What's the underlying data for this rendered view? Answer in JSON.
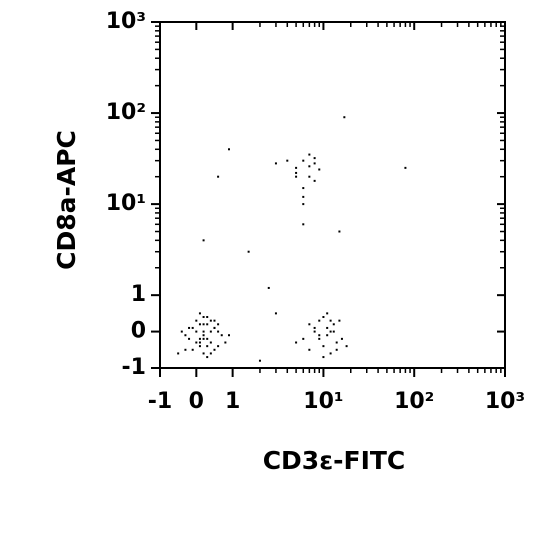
{
  "chart_data": {
    "type": "scatter",
    "scale": "biexponential",
    "x_label": "CD3ε-FITC",
    "y_label": "CD8a-APC",
    "color": "#000000",
    "xlim": [
      -1,
      1000
    ],
    "ylim": [
      -1,
      1000
    ],
    "xticks": [
      -1,
      0,
      1,
      {
        "value": 10,
        "label": "10¹"
      },
      {
        "value": 100,
        "label": "10²"
      },
      {
        "value": 1000,
        "label": "10³"
      }
    ],
    "yticks": [
      -1,
      0,
      1,
      {
        "value": 10,
        "label": "10¹"
      },
      {
        "value": 100,
        "label": "10²"
      },
      {
        "value": 1000,
        "label": "10³"
      }
    ],
    "minor_ticks": [
      2,
      3,
      4,
      5,
      6,
      7,
      8,
      9,
      20,
      30,
      40,
      50,
      60,
      70,
      80,
      90,
      200,
      300,
      400,
      500,
      600,
      700,
      800,
      900
    ],
    "x": [
      -0.3,
      0.1,
      0.4,
      0.2,
      -0.1,
      0.5,
      0.3,
      0.0,
      0.6,
      0.2,
      -0.2,
      0.3,
      0.1,
      0.4,
      0.7,
      0.0,
      0.2,
      0.5,
      -0.4,
      0.3,
      0.1,
      0.6,
      0.2,
      0.8,
      -0.2,
      0.4,
      0.0,
      0.3,
      0.5,
      0.1,
      0.2,
      -0.1,
      0.4,
      0.6,
      0.3,
      0.9,
      0.1,
      0.2,
      -0.3,
      0.5,
      6,
      8,
      10,
      12,
      9,
      14,
      11,
      7,
      13,
      10,
      16,
      8,
      12,
      9,
      15,
      11,
      5,
      10,
      13,
      18,
      7,
      12,
      9,
      11,
      14,
      5,
      6,
      7,
      8,
      6,
      5,
      7,
      9,
      6,
      8,
      4,
      7,
      6,
      5,
      8,
      3,
      0.9,
      0.6,
      1.5,
      3,
      0.2,
      2,
      17,
      80,
      -0.5,
      15,
      6,
      2.5
    ],
    "values": [
      -0.1,
      0.2,
      -0.3,
      0.0,
      -0.5,
      0.1,
      -0.2,
      0.3,
      -0.4,
      -0.6,
      0.1,
      0.4,
      -0.2,
      0.0,
      -0.1,
      -0.3,
      0.2,
      -0.5,
      0.0,
      -0.4,
      0.5,
      0.2,
      -0.1,
      -0.3,
      -0.2,
      0.3,
      0.0,
      -0.7,
      0.1,
      -0.4,
      -0.2,
      0.1,
      -0.6,
      0.0,
      0.2,
      -0.1,
      -0.3,
      0.4,
      -0.5,
      0.3,
      -0.2,
      0.1,
      -0.4,
      0.0,
      0.3,
      -0.3,
      -0.1,
      -0.5,
      0.2,
      0.4,
      -0.2,
      0.0,
      -0.6,
      -0.1,
      0.3,
      0.1,
      -0.3,
      -0.7,
      0.0,
      -0.4,
      0.2,
      0.3,
      -0.2,
      0.5,
      -0.5,
      25,
      30,
      20,
      28,
      15,
      22,
      35,
      24,
      12,
      18,
      30,
      26,
      10,
      20,
      32,
      28,
      40,
      20,
      3,
      0.5,
      4,
      -0.8,
      90,
      25,
      -0.6,
      5,
      6,
      1.2
    ]
  }
}
